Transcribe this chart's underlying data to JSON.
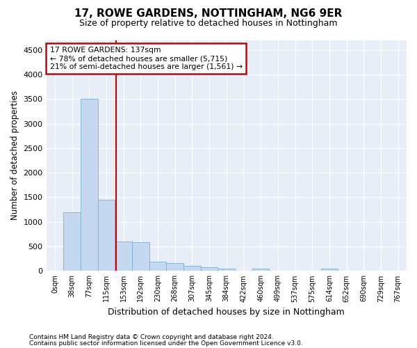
{
  "title": "17, ROWE GARDENS, NOTTINGHAM, NG6 9ER",
  "subtitle": "Size of property relative to detached houses in Nottingham",
  "xlabel": "Distribution of detached houses by size in Nottingham",
  "ylabel": "Number of detached properties",
  "bar_color": "#c5d8f0",
  "bar_edge_color": "#7aadd4",
  "annotation_box_color": "#cc0000",
  "vline_color": "#cc0000",
  "annotation_title": "17 ROWE GARDENS: 137sqm",
  "annotation_line1": "← 78% of detached houses are smaller (5,715)",
  "annotation_line2": "21% of semi-detached houses are larger (1,561) →",
  "categories": [
    "0sqm",
    "38sqm",
    "77sqm",
    "115sqm",
    "153sqm",
    "192sqm",
    "230sqm",
    "268sqm",
    "307sqm",
    "345sqm",
    "384sqm",
    "422sqm",
    "460sqm",
    "499sqm",
    "537sqm",
    "575sqm",
    "614sqm",
    "652sqm",
    "690sqm",
    "729sqm",
    "767sqm"
  ],
  "values": [
    0,
    1200,
    3500,
    1450,
    600,
    580,
    195,
    160,
    100,
    80,
    50,
    0,
    50,
    0,
    0,
    0,
    50,
    0,
    0,
    0,
    0
  ],
  "vline_pos": 3.58,
  "ylim": [
    0,
    4700
  ],
  "yticks": [
    0,
    500,
    1000,
    1500,
    2000,
    2500,
    3000,
    3500,
    4000,
    4500
  ],
  "background_color": "#ffffff",
  "plot_bg_color": "#e8eef8",
  "footer1": "Contains HM Land Registry data © Crown copyright and database right 2024.",
  "footer2": "Contains public sector information licensed under the Open Government Licence v3.0."
}
